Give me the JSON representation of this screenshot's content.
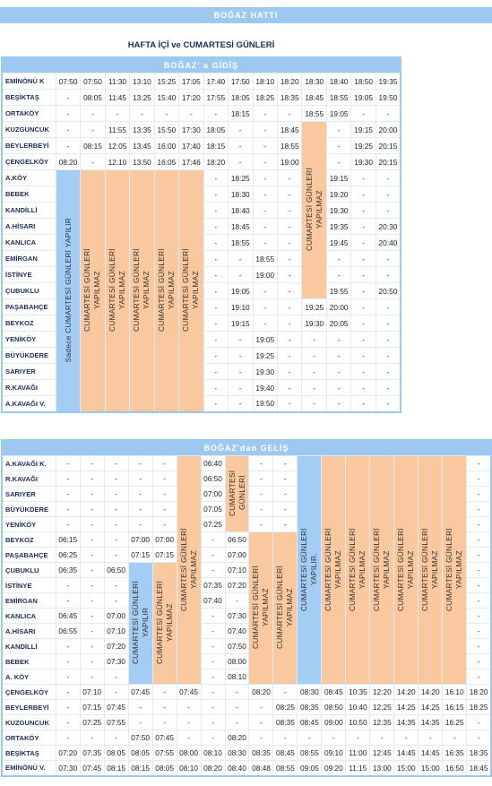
{
  "header": {
    "title": "BOĞAZ HATTI",
    "subtitle": "HAFTA İÇİ ve CUMARTESİ GÜNLERİ"
  },
  "tables": [
    {
      "title": "BOĞAZ' a GİDİŞ",
      "rows": [
        {
          "station": "EMİNÖNÜ K",
          "cells": [
            "07:50",
            "07:50",
            "11:30",
            "13:10",
            "15:25",
            "17:05",
            "17:40",
            "17:50",
            "18:10",
            "18:20",
            "18:30",
            "18:40",
            "18:50",
            "19:35"
          ]
        },
        {
          "station": "BEŞİKTAŞ",
          "cells": [
            "-",
            "08:05",
            "11:45",
            "13:25",
            "15:40",
            "17:20",
            "17:55",
            "18:05",
            "18:25",
            "18:35",
            "18:45",
            "18:55",
            "19:05",
            "19:50"
          ]
        },
        {
          "station": "ORTAKÖY",
          "cells": [
            "-",
            "-",
            "-",
            "-",
            "-",
            "-",
            "-",
            "18:15",
            "-",
            "-",
            "18:55",
            "19:05",
            "-",
            "-"
          ]
        },
        {
          "station": "KUZGUNCUK",
          "cells": [
            "-",
            "-",
            "11:55",
            "13:35",
            "15:50",
            "17:30",
            "18:05",
            "-",
            "-",
            "18:45",
            {
              "text": "CUMARTESİ GÜNLERİ YAPILMAZ",
              "rows": 11,
              "color": "#f9c89e"
            },
            "-",
            "19:15",
            "20:00"
          ]
        },
        {
          "station": "BEYLERBEYİ",
          "cells": [
            "-",
            "08:15",
            "12:05",
            "13:45",
            "16:00",
            "17:40",
            "18:15",
            "-",
            "-",
            "18:55",
            null,
            "-",
            "19:25",
            "20:15"
          ]
        },
        {
          "station": "ÇENGELKÖY",
          "cells": [
            "08:20",
            "-",
            "12:10",
            "13:50",
            "16:05",
            "17:46",
            "18:20",
            "-",
            "-",
            "19:00",
            null,
            "-",
            "19:30",
            "20:15"
          ]
        },
        {
          "station": "A.KÖY",
          "cells": [
            {
              "text": "Sadece CUMARTESİ GÜNLERİ YAPILIR",
              "rows": 15,
              "color": "#a3cdf5"
            },
            {
              "text": "CUMARTESİ GÜNLERİ YAPILMAZ",
              "rows": 15,
              "color": "#f9c89e"
            },
            {
              "text": "CUMARTESİ GÜNLERİ YAPILMAZ",
              "rows": 15,
              "color": "#f9c89e"
            },
            {
              "text": "CUMARTESİ GÜNLERİ YAPILMAZ",
              "rows": 15,
              "color": "#f9c89e"
            },
            {
              "text": "CUMARTESİ GÜNLERİ YAPILMAZ",
              "rows": 15,
              "color": "#f9c89e"
            },
            {
              "text": "CUMARTESİ GÜNLERİ YAPILMAZ",
              "rows": 15,
              "color": "#f9c89e"
            },
            "-",
            "18:25",
            "-",
            "-",
            null,
            "19:15",
            "-",
            "-"
          ]
        },
        {
          "station": "BEBEK",
          "cells": [
            null,
            null,
            null,
            null,
            null,
            null,
            "-",
            "18:30",
            "-",
            "-",
            null,
            "19:20",
            "-",
            "-"
          ]
        },
        {
          "station": "KANDİLLİ",
          "cells": [
            null,
            null,
            null,
            null,
            null,
            null,
            "-",
            "18:40",
            "-",
            "-",
            null,
            "19:30",
            "-",
            "-"
          ]
        },
        {
          "station": "A.HİSARI",
          "cells": [
            null,
            null,
            null,
            null,
            null,
            null,
            "-",
            "18:45",
            "-",
            "-",
            null,
            "19:35",
            "-",
            "20:30"
          ]
        },
        {
          "station": "KANLICA",
          "cells": [
            null,
            null,
            null,
            null,
            null,
            null,
            "-",
            "18:55",
            "-",
            "-",
            null,
            "19:45",
            "-",
            "20:40"
          ]
        },
        {
          "station": "EMİRGAN",
          "cells": [
            null,
            null,
            null,
            null,
            null,
            null,
            "-",
            "-",
            "18:55",
            "-",
            null,
            "-",
            "-",
            "-"
          ]
        },
        {
          "station": "İSTİNYE",
          "cells": [
            null,
            null,
            null,
            null,
            null,
            null,
            "-",
            "-",
            "19:00",
            "-",
            null,
            "-",
            "-",
            "-"
          ]
        },
        {
          "station": "ÇUBUKLU",
          "cells": [
            null,
            null,
            null,
            null,
            null,
            null,
            "-",
            "19:05",
            "-",
            "-",
            null,
            "19:55",
            "-",
            "20:50"
          ]
        },
        {
          "station": "PAŞABAHÇE",
          "cells": [
            null,
            null,
            null,
            null,
            null,
            null,
            "-",
            "19:10",
            "-",
            "-",
            "19:25",
            "20:00",
            "-",
            "-"
          ]
        },
        {
          "station": "BEYKOZ",
          "cells": [
            null,
            null,
            null,
            null,
            null,
            null,
            "-",
            "19:15",
            "-",
            "-",
            "19:30",
            "20:05",
            "-",
            "-"
          ]
        },
        {
          "station": "YENİKÖY",
          "cells": [
            null,
            null,
            null,
            null,
            null,
            null,
            "-",
            "-",
            "19:05",
            "-",
            "-",
            "-",
            "-",
            "-"
          ]
        },
        {
          "station": "BÜYÜKDERE",
          "cells": [
            null,
            null,
            null,
            null,
            null,
            null,
            "-",
            "-",
            "19:25",
            "-",
            "-",
            "-",
            "-",
            "-"
          ]
        },
        {
          "station": "SARIYER",
          "cells": [
            null,
            null,
            null,
            null,
            null,
            null,
            "-",
            "-",
            "19:30",
            "-",
            "-",
            "-",
            "-",
            "-"
          ]
        },
        {
          "station": "R.KAVAĞI",
          "cells": [
            null,
            null,
            null,
            null,
            null,
            null,
            "-",
            "-",
            "19:40",
            "-",
            "-",
            "-",
            "-",
            "-"
          ]
        },
        {
          "station": "A.KAVAĞI V.",
          "cells": [
            null,
            null,
            null,
            null,
            null,
            null,
            "-",
            "-",
            "19:50",
            "-",
            "-",
            "-",
            "-",
            "-"
          ]
        }
      ]
    },
    {
      "title": "BOĞAZ'dan GELİŞ",
      "rows": [
        {
          "station": "A.KAVAĞI K.",
          "cells": [
            "-",
            "-",
            "-",
            "-",
            "-",
            {
              "text": "CUMARTESİ GÜNLERİ YAPILMAZ",
              "rows": 15,
              "color": "#f9c89e"
            },
            "06:40",
            {
              "text": "CUMARTESİ GÜNLERİ",
              "rows": 5,
              "color": "#f9c89e"
            },
            "-",
            "-",
            {
              "text": "CUMARTESİ GÜNLERİ YAPILIR.",
              "rows": 15,
              "color": "#a3cdf5"
            },
            {
              "text": "CUMARTESİ GÜNLERİ YAPILMAZ",
              "rows": 15,
              "color": "#f9c89e"
            },
            {
              "text": "CUMARTESİ GÜNLERİ YAPILMAZ",
              "rows": 15,
              "color": "#f9c89e"
            },
            {
              "text": "CUMARTESİ GÜNLERİ YAPILMAZ",
              "rows": 15,
              "color": "#f9c89e"
            },
            {
              "text": "CUMARTESİ GÜNLERİ YAPILMAZ",
              "rows": 15,
              "color": "#f9c89e"
            },
            {
              "text": "CUMARTESİ GÜNLERİ YAPILMAZ",
              "rows": 15,
              "color": "#f9c89e"
            },
            {
              "text": "CUMARTESİ GÜNLERİ YAPILMAZ",
              "rows": 15,
              "color": "#f9c89e"
            },
            "-"
          ]
        },
        {
          "station": "R.KAVAĞI",
          "cells": [
            "-",
            "-",
            "-",
            "-",
            "-",
            null,
            "06:50",
            null,
            "-",
            "-",
            null,
            null,
            null,
            null,
            null,
            null,
            null,
            "-"
          ]
        },
        {
          "station": "SARIYER",
          "cells": [
            "-",
            "-",
            "-",
            "-",
            "-",
            null,
            "07:00",
            null,
            "-",
            "-",
            null,
            null,
            null,
            null,
            null,
            null,
            null,
            "-"
          ]
        },
        {
          "station": "BÜYÜKDERE",
          "cells": [
            "-",
            "-",
            "-",
            "-",
            "-",
            null,
            "07:05",
            null,
            "-",
            "-",
            null,
            null,
            null,
            null,
            null,
            null,
            null,
            "-"
          ]
        },
        {
          "station": "YENİKÖY",
          "cells": [
            "-",
            "-",
            "-",
            "-",
            "-",
            null,
            "07:25",
            null,
            "-",
            "-",
            null,
            null,
            null,
            null,
            null,
            null,
            null,
            "-"
          ]
        },
        {
          "station": "BEYKOZ",
          "cells": [
            "06:15",
            "-",
            "-",
            "07:00",
            "07:00",
            null,
            "-",
            "06:50",
            {
              "text": "CUMARTESİ GÜNLERİ YAPILMAZ",
              "rows": 10,
              "color": "#f9c89e"
            },
            {
              "text": "CUMARTESİ GÜNLERİ YAPILMAZ",
              "rows": 10,
              "color": "#f9c89e"
            },
            null,
            null,
            null,
            null,
            null,
            null,
            null,
            "-"
          ]
        },
        {
          "station": "PAŞABAHÇE",
          "cells": [
            "06:25",
            "-",
            "-",
            "07:15",
            "07:15",
            null,
            "-",
            "07:00",
            null,
            null,
            null,
            null,
            null,
            null,
            null,
            null,
            null,
            "-"
          ]
        },
        {
          "station": "ÇUBUKLU",
          "cells": [
            "06:35",
            "-",
            "06:50",
            {
              "text": "CUMARTESİ GÜNLERİ YAPILIR",
              "rows": 8,
              "color": "#a3cdf5"
            },
            {
              "text": "CUMARTESİ GÜNLERİ YAPILMAZ",
              "rows": 8,
              "color": "#f9c89e"
            },
            null,
            "-",
            "07:10",
            null,
            null,
            null,
            null,
            null,
            null,
            null,
            null,
            null,
            "-"
          ]
        },
        {
          "station": "İSTİNYE",
          "cells": [
            "-",
            "-",
            "-",
            null,
            null,
            null,
            "07:35",
            "07:20",
            null,
            null,
            null,
            null,
            null,
            null,
            null,
            null,
            null,
            "-"
          ]
        },
        {
          "station": "EMİRGAN",
          "cells": [
            "-",
            "-",
            "-",
            null,
            null,
            null,
            "07:40",
            "-",
            null,
            null,
            null,
            null,
            null,
            null,
            null,
            null,
            null,
            "-"
          ]
        },
        {
          "station": "KANLICA",
          "cells": [
            "06:45",
            "-",
            "07:00",
            null,
            null,
            null,
            "-",
            "07:30",
            null,
            null,
            null,
            null,
            null,
            null,
            null,
            null,
            null,
            "-"
          ]
        },
        {
          "station": "A.HİSARI",
          "cells": [
            "06:55",
            "-",
            "07:10",
            null,
            null,
            null,
            "-",
            "07:40",
            null,
            null,
            null,
            null,
            null,
            null,
            null,
            null,
            null,
            "-"
          ]
        },
        {
          "station": "KANDİLLİ",
          "cells": [
            "-",
            "-",
            "07:20",
            null,
            null,
            null,
            "-",
            "07:50",
            null,
            null,
            null,
            null,
            null,
            null,
            null,
            null,
            null,
            "-"
          ]
        },
        {
          "station": "BEBEK",
          "cells": [
            "-",
            "-",
            "07:30",
            null,
            null,
            null,
            "-",
            "08:00",
            null,
            null,
            null,
            null,
            null,
            null,
            null,
            null,
            null,
            "-"
          ]
        },
        {
          "station": "A. KÖY",
          "cells": [
            "-",
            "-",
            "-",
            null,
            null,
            null,
            "-",
            "08:10",
            null,
            null,
            null,
            null,
            null,
            null,
            null,
            null,
            null,
            "-"
          ]
        },
        {
          "station": "ÇENGELKÖY",
          "cells": [
            "-",
            "07:10",
            "-",
            "07:45",
            "-",
            "07:45",
            "-",
            "-",
            "08:20",
            "-",
            "08:30",
            "08:45",
            "10:35",
            "12:20",
            "14:20",
            "14:20",
            "16:10",
            "18:20"
          ]
        },
        {
          "station": "BEYLERBEYİ",
          "cells": [
            "-",
            "07:15",
            "07:45",
            "-",
            "-",
            "-",
            "-",
            "-",
            "-",
            "08:25",
            "08:35",
            "08:50",
            "10:40",
            "12:25",
            "14:25",
            "14:25",
            "16:15",
            "18:25"
          ]
        },
        {
          "station": "KUZGUNCUK",
          "cells": [
            "-",
            "07:25",
            "07:55",
            "-",
            "-",
            "-",
            "-",
            "-",
            "-",
            "08:35",
            "08:45",
            "09:00",
            "10:50",
            "12:35",
            "14:35",
            "14:35",
            "16:25",
            "-"
          ]
        },
        {
          "station": "ORTAKÖY",
          "cells": [
            "-",
            "-",
            "-",
            "07:50",
            "07:45",
            "-",
            "-",
            "08:20",
            "-",
            "-",
            "-",
            "-",
            "-",
            "-",
            "-",
            "-",
            "-",
            "-"
          ]
        },
        {
          "station": "BEŞİKTAŞ",
          "cells": [
            "07:20",
            "07:35",
            "08:05",
            "08:05",
            "07:55",
            "08:00",
            "08:10",
            "08:30",
            "08:35",
            "08:45",
            "08:55",
            "09:10",
            "11:00",
            "12:45",
            "14:45",
            "14:45",
            "16:35",
            "18:35"
          ]
        },
        {
          "station": "EMİNÖNÜ V.",
          "cells": [
            "07:30",
            "07:45",
            "08:15",
            "08:15",
            "08:05",
            "08:10",
            "08:20",
            "08:40",
            "08:48",
            "08:55",
            "09:05",
            "09:20",
            "11:15",
            "13:00",
            "15:00",
            "15:00",
            "16:50",
            "18:45"
          ]
        }
      ]
    }
  ]
}
